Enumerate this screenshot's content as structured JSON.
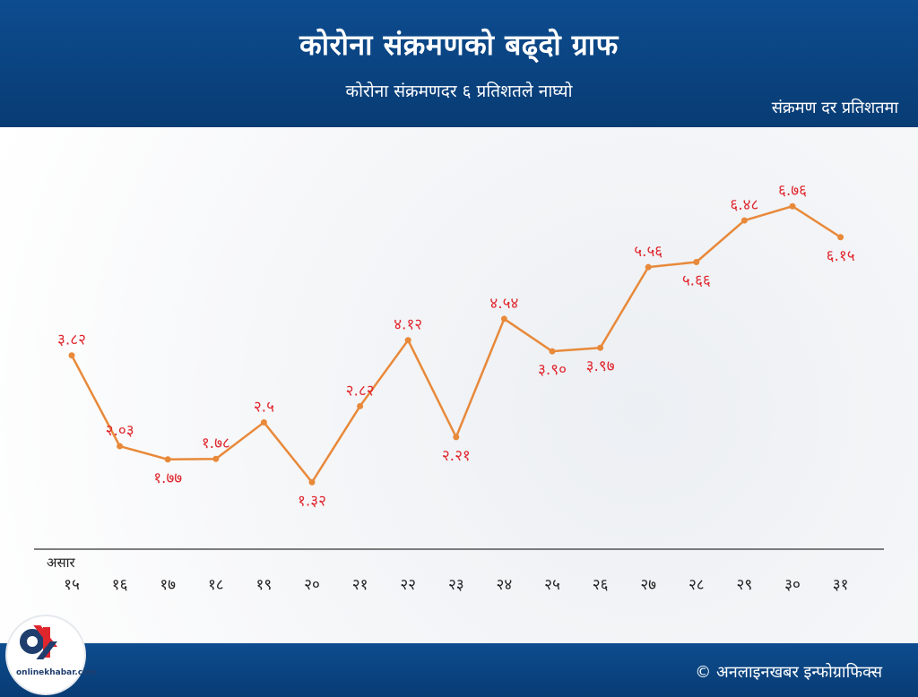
{
  "header": {
    "title": "कोरोना संक्रमणको बढ्दो ग्राफ",
    "subtitle": "कोरोना संक्रमणदर ६ प्रतिशतले नाघ्यो",
    "unit_note": "संक्रमण दर प्रतिशतमा"
  },
  "footer": {
    "credit": "© अनलाइनखबर इन्फोग्राफिक्स",
    "logo_text": "onlinekhabar.com"
  },
  "colors": {
    "header_bg": "#0d4c8f",
    "line": "#e8893a",
    "label": "#e0262d",
    "axis": "#333333"
  },
  "chart_data": {
    "type": "line",
    "x_group_label": "असार",
    "categories": [
      "१५",
      "१६",
      "१७",
      "१८",
      "१९",
      "२०",
      "२१",
      "२२",
      "२३",
      "२४",
      "२५",
      "२६",
      "२७",
      "२८",
      "२९",
      "३०",
      "३१"
    ],
    "values": [
      3.82,
      2.03,
      1.77,
      1.78,
      2.5,
      1.32,
      2.82,
      4.12,
      2.21,
      4.54,
      3.9,
      3.97,
      5.56,
      5.66,
      6.48,
      6.76,
      6.15
    ],
    "data_labels": [
      "३.८२",
      "२.०३",
      "१.७७",
      "१.७८",
      "२.५",
      "१.३२",
      "२.८२",
      "४.१२",
      "२.२१",
      "४.५४",
      "३.९०",
      "३.९७",
      "५.५६",
      "५.६६",
      "६.४८",
      "६.७६",
      "६.१५"
    ],
    "label_position": [
      "above",
      "above",
      "below",
      "above",
      "above",
      "below",
      "above",
      "above",
      "below",
      "above",
      "below",
      "below",
      "above",
      "below",
      "above",
      "above",
      "below"
    ],
    "ylim": [
      0,
      8
    ],
    "grid": false,
    "legend": "none"
  }
}
